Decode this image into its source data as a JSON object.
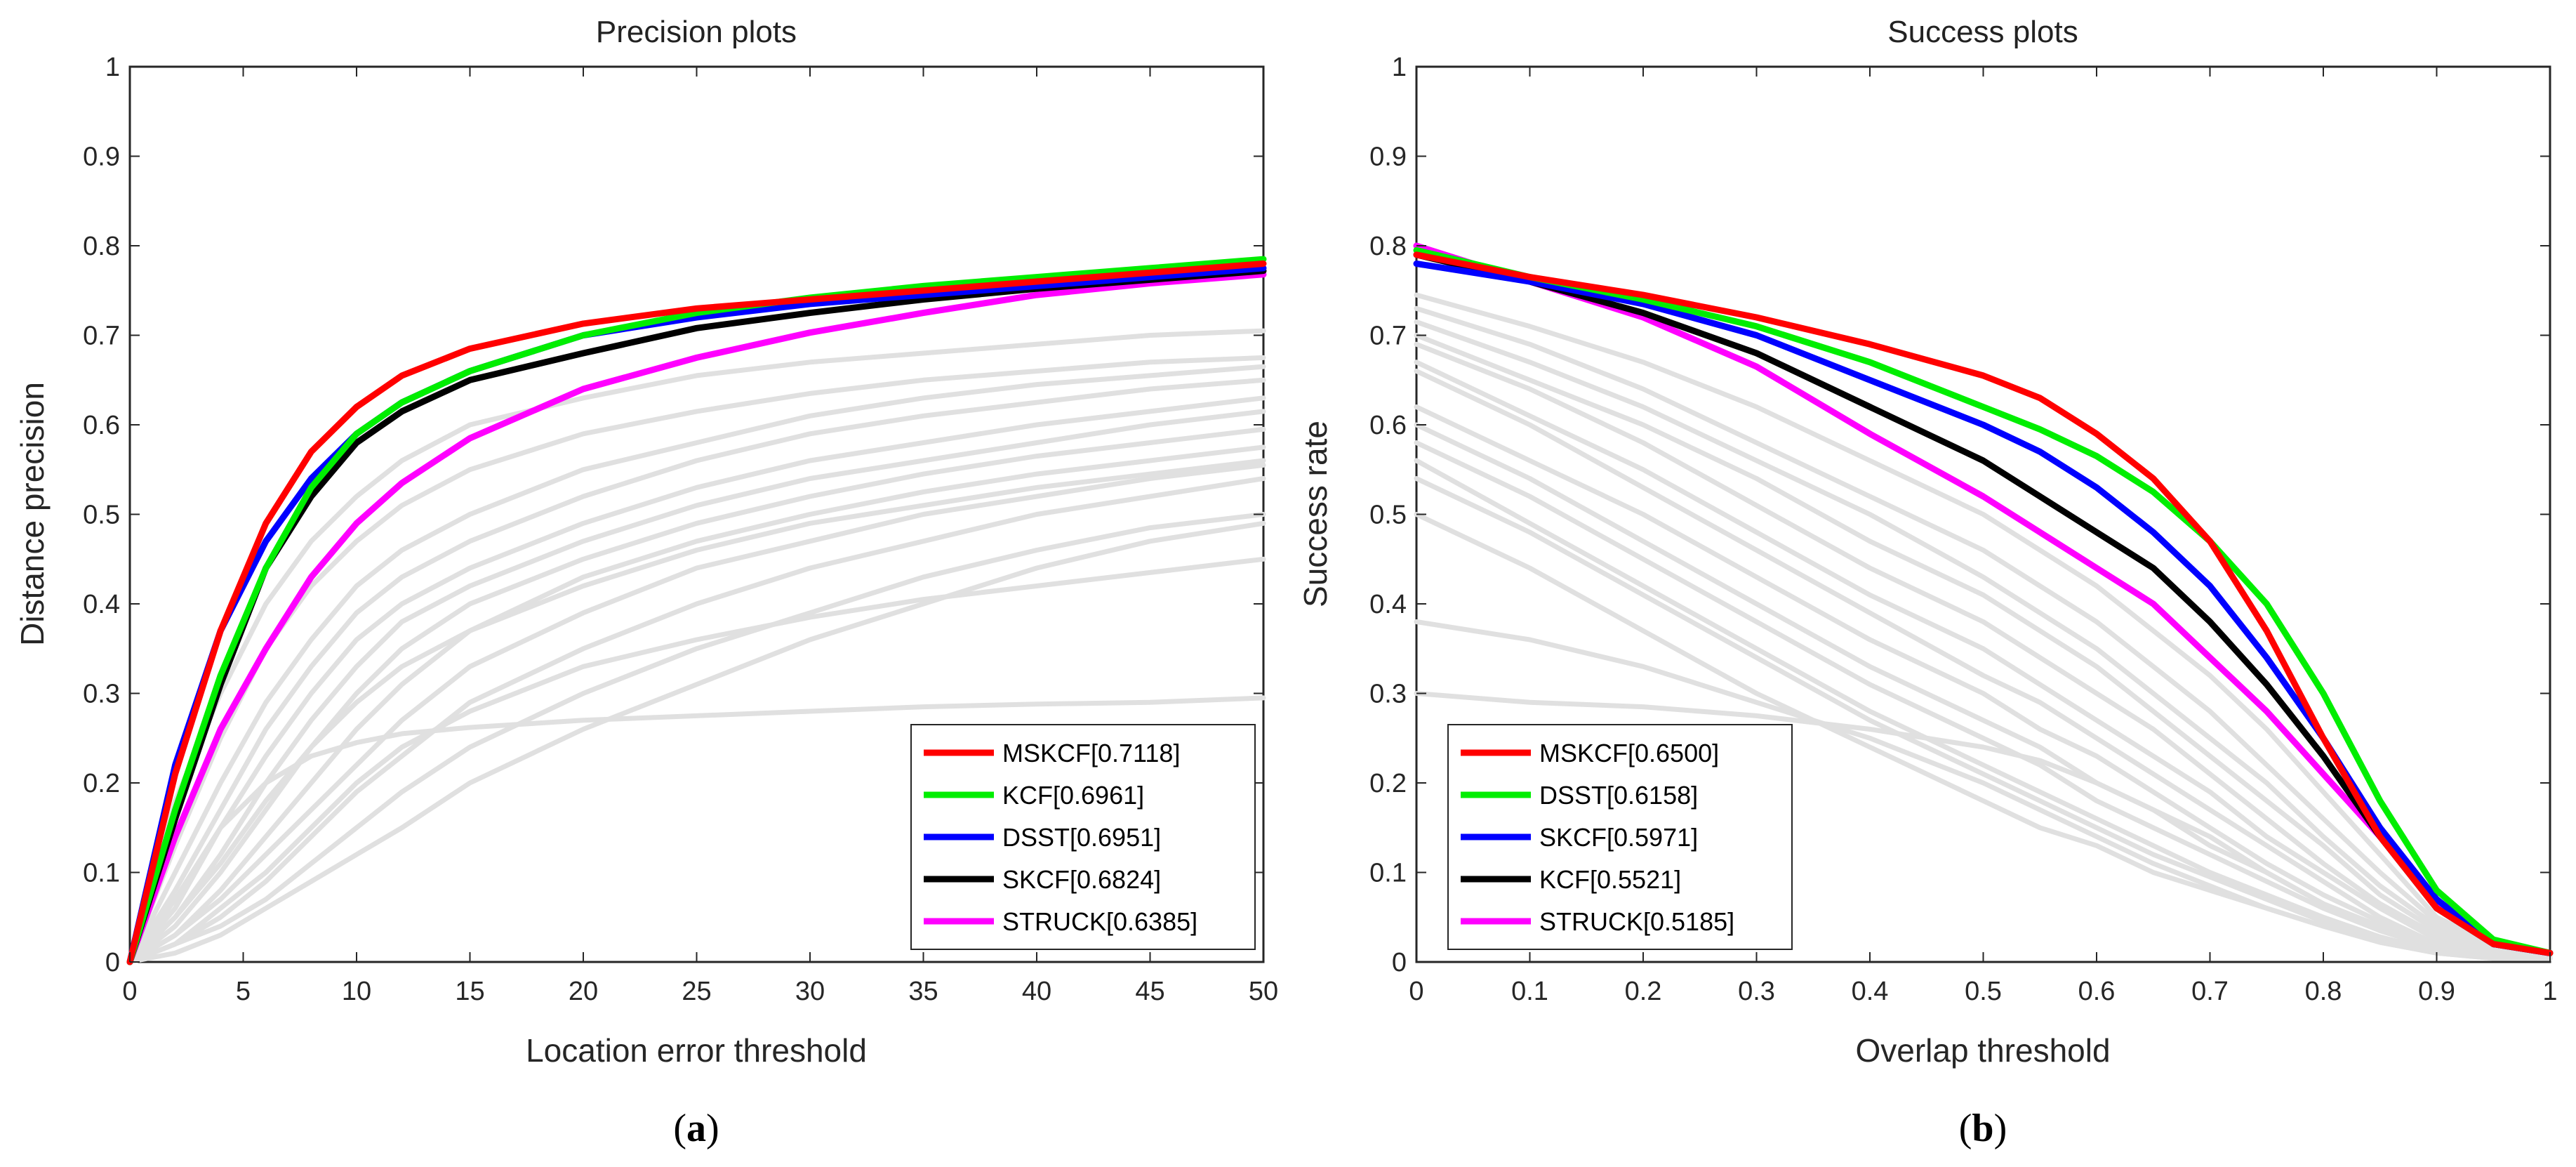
{
  "captions": {
    "a_open": "(",
    "a_letter": "a",
    "a_close": ")",
    "b_open": "(",
    "b_letter": "b",
    "b_close": ")"
  },
  "chart_data": [
    {
      "type": "line",
      "title": "Precision plots",
      "xlabel": "Location error threshold",
      "ylabel": "Distance precision",
      "xlim": [
        0,
        50
      ],
      "ylim": [
        0,
        1
      ],
      "xticks": [
        0,
        5,
        10,
        15,
        20,
        25,
        30,
        35,
        40,
        45,
        50
      ],
      "yticks": [
        0,
        0.1,
        0.2,
        0.3,
        0.4,
        0.5,
        0.6,
        0.7,
        0.8,
        0.9,
        1
      ],
      "xtick_labels": [
        "0",
        "5",
        "10",
        "15",
        "20",
        "25",
        "30",
        "35",
        "40",
        "45",
        "50"
      ],
      "ytick_labels": [
        "0",
        "0.1",
        "0.2",
        "0.3",
        "0.4",
        "0.5",
        "0.6",
        "0.7",
        "0.8",
        "0.9",
        "1"
      ],
      "grid": false,
      "legend_position": "bottom-right",
      "x": [
        0,
        2,
        4,
        6,
        8,
        10,
        12,
        15,
        20,
        25,
        30,
        35,
        40,
        45,
        50
      ],
      "series": [
        {
          "name": "MSKCF[0.7118]",
          "color": "#ff0000",
          "values": [
            0.0,
            0.21,
            0.37,
            0.49,
            0.57,
            0.62,
            0.655,
            0.685,
            0.713,
            0.73,
            0.74,
            0.75,
            0.76,
            0.77,
            0.78
          ]
        },
        {
          "name": "KCF[0.6961]",
          "color": "#00ee00",
          "values": [
            0.0,
            0.17,
            0.32,
            0.44,
            0.53,
            0.59,
            0.625,
            0.66,
            0.7,
            0.725,
            0.742,
            0.755,
            0.765,
            0.775,
            0.785
          ]
        },
        {
          "name": "DSST[0.6951]",
          "color": "#0000ff",
          "values": [
            0.0,
            0.22,
            0.37,
            0.47,
            0.54,
            0.59,
            0.625,
            0.66,
            0.7,
            0.72,
            0.735,
            0.745,
            0.755,
            0.765,
            0.775
          ]
        },
        {
          "name": "SKCF[0.6824]",
          "color": "#000000",
          "values": [
            0.0,
            0.16,
            0.31,
            0.44,
            0.52,
            0.58,
            0.615,
            0.65,
            0.68,
            0.708,
            0.725,
            0.74,
            0.752,
            0.762,
            0.772
          ]
        },
        {
          "name": "STRUCK[0.6385]",
          "color": "#ff00ff",
          "values": [
            0.0,
            0.14,
            0.26,
            0.35,
            0.43,
            0.49,
            0.535,
            0.585,
            0.64,
            0.675,
            0.703,
            0.725,
            0.745,
            0.758,
            0.768
          ]
        }
      ],
      "background_series_color": "#e0e0e0",
      "background_series": [
        [
          0.0,
          0.18,
          0.3,
          0.4,
          0.47,
          0.52,
          0.56,
          0.6,
          0.63,
          0.655,
          0.67,
          0.68,
          0.69,
          0.7,
          0.705
        ],
        [
          0.0,
          0.13,
          0.25,
          0.35,
          0.42,
          0.47,
          0.51,
          0.55,
          0.59,
          0.615,
          0.635,
          0.65,
          0.66,
          0.67,
          0.675
        ],
        [
          0.0,
          0.1,
          0.2,
          0.29,
          0.36,
          0.42,
          0.46,
          0.5,
          0.55,
          0.58,
          0.61,
          0.63,
          0.645,
          0.655,
          0.665
        ],
        [
          0.0,
          0.08,
          0.17,
          0.26,
          0.33,
          0.39,
          0.43,
          0.47,
          0.52,
          0.56,
          0.59,
          0.61,
          0.625,
          0.64,
          0.65
        ],
        [
          0.0,
          0.07,
          0.15,
          0.23,
          0.3,
          0.36,
          0.4,
          0.44,
          0.49,
          0.53,
          0.56,
          0.58,
          0.6,
          0.615,
          0.63
        ],
        [
          0.0,
          0.05,
          0.12,
          0.2,
          0.27,
          0.33,
          0.38,
          0.42,
          0.47,
          0.51,
          0.54,
          0.56,
          0.58,
          0.6,
          0.615
        ],
        [
          0.0,
          0.04,
          0.1,
          0.17,
          0.24,
          0.3,
          0.35,
          0.4,
          0.45,
          0.49,
          0.52,
          0.545,
          0.565,
          0.58,
          0.595
        ],
        [
          0.0,
          0.03,
          0.08,
          0.14,
          0.2,
          0.26,
          0.31,
          0.37,
          0.43,
          0.47,
          0.5,
          0.525,
          0.545,
          0.56,
          0.575
        ],
        [
          0.0,
          0.03,
          0.07,
          0.12,
          0.17,
          0.22,
          0.27,
          0.33,
          0.39,
          0.44,
          0.47,
          0.5,
          0.52,
          0.54,
          0.555
        ],
        [
          0.0,
          0.02,
          0.05,
          0.09,
          0.14,
          0.19,
          0.23,
          0.29,
          0.35,
          0.4,
          0.44,
          0.47,
          0.5,
          0.52,
          0.54
        ],
        [
          0.0,
          0.02,
          0.04,
          0.07,
          0.11,
          0.15,
          0.19,
          0.24,
          0.3,
          0.35,
          0.39,
          0.43,
          0.46,
          0.485,
          0.5
        ],
        [
          0.0,
          0.01,
          0.03,
          0.06,
          0.09,
          0.12,
          0.15,
          0.2,
          0.26,
          0.31,
          0.36,
          0.4,
          0.44,
          0.47,
          0.49
        ],
        [
          0.0,
          0.06,
          0.15,
          0.2,
          0.23,
          0.245,
          0.255,
          0.262,
          0.27,
          0.275,
          0.28,
          0.285,
          0.288,
          0.29,
          0.295
        ],
        [
          0.0,
          0.02,
          0.06,
          0.1,
          0.15,
          0.2,
          0.24,
          0.28,
          0.33,
          0.36,
          0.385,
          0.405,
          0.42,
          0.435,
          0.45
        ],
        [
          0.0,
          0.05,
          0.11,
          0.18,
          0.24,
          0.29,
          0.33,
          0.37,
          0.42,
          0.46,
          0.49,
          0.51,
          0.53,
          0.545,
          0.56
        ]
      ]
    },
    {
      "type": "line",
      "title": "Success plots",
      "xlabel": "Overlap threshold",
      "ylabel": "Success rate",
      "xlim": [
        0,
        1
      ],
      "ylim": [
        0,
        1
      ],
      "xticks": [
        0,
        0.1,
        0.2,
        0.3,
        0.4,
        0.5,
        0.6,
        0.7,
        0.8,
        0.9,
        1
      ],
      "yticks": [
        0,
        0.1,
        0.2,
        0.3,
        0.4,
        0.5,
        0.6,
        0.7,
        0.8,
        0.9,
        1
      ],
      "xtick_labels": [
        "0",
        "0.1",
        "0.2",
        "0.3",
        "0.4",
        "0.5",
        "0.6",
        "0.7",
        "0.8",
        "0.9",
        "1"
      ],
      "ytick_labels": [
        "0",
        "0.1",
        "0.2",
        "0.3",
        "0.4",
        "0.5",
        "0.6",
        "0.7",
        "0.8",
        "0.9",
        "1"
      ],
      "grid": false,
      "legend_position": "bottom-left",
      "x": [
        0,
        0.1,
        0.2,
        0.3,
        0.4,
        0.5,
        0.55,
        0.6,
        0.65,
        0.7,
        0.75,
        0.8,
        0.85,
        0.9,
        0.95,
        1.0
      ],
      "series": [
        {
          "name": "MSKCF[0.6500]",
          "color": "#ff0000",
          "values": [
            0.79,
            0.765,
            0.745,
            0.72,
            0.69,
            0.655,
            0.63,
            0.59,
            0.54,
            0.47,
            0.37,
            0.25,
            0.14,
            0.06,
            0.02,
            0.01
          ]
        },
        {
          "name": "DSST[0.6158]",
          "color": "#00ee00",
          "values": [
            0.795,
            0.765,
            0.74,
            0.71,
            0.67,
            0.62,
            0.595,
            0.565,
            0.525,
            0.47,
            0.4,
            0.3,
            0.18,
            0.08,
            0.025,
            0.01
          ]
        },
        {
          "name": "SKCF[0.5971]",
          "color": "#0000ff",
          "values": [
            0.78,
            0.76,
            0.735,
            0.7,
            0.65,
            0.6,
            0.57,
            0.53,
            0.48,
            0.42,
            0.34,
            0.25,
            0.15,
            0.07,
            0.02,
            0.01
          ]
        },
        {
          "name": "KCF[0.5521]",
          "color": "#000000",
          "values": [
            0.79,
            0.76,
            0.725,
            0.68,
            0.62,
            0.56,
            0.52,
            0.48,
            0.44,
            0.38,
            0.31,
            0.23,
            0.14,
            0.06,
            0.02,
            0.01
          ]
        },
        {
          "name": "STRUCK[0.5185]",
          "color": "#ff00ff",
          "values": [
            0.8,
            0.76,
            0.72,
            0.665,
            0.59,
            0.52,
            0.48,
            0.44,
            0.4,
            0.34,
            0.28,
            0.21,
            0.14,
            0.065,
            0.02,
            0.01
          ]
        }
      ],
      "background_series_color": "#e0e0e0",
      "background_series": [
        [
          0.745,
          0.71,
          0.67,
          0.62,
          0.56,
          0.5,
          0.46,
          0.42,
          0.37,
          0.32,
          0.26,
          0.19,
          0.12,
          0.05,
          0.02,
          0.01
        ],
        [
          0.73,
          0.69,
          0.64,
          0.58,
          0.52,
          0.46,
          0.42,
          0.38,
          0.33,
          0.28,
          0.22,
          0.16,
          0.1,
          0.045,
          0.015,
          0.01
        ],
        [
          0.715,
          0.67,
          0.62,
          0.56,
          0.5,
          0.43,
          0.39,
          0.35,
          0.3,
          0.25,
          0.2,
          0.14,
          0.085,
          0.04,
          0.015,
          0.01
        ],
        [
          0.7,
          0.65,
          0.6,
          0.54,
          0.47,
          0.41,
          0.37,
          0.33,
          0.28,
          0.23,
          0.18,
          0.13,
          0.075,
          0.035,
          0.012,
          0.005
        ],
        [
          0.69,
          0.64,
          0.58,
          0.51,
          0.44,
          0.38,
          0.34,
          0.3,
          0.26,
          0.21,
          0.16,
          0.11,
          0.065,
          0.03,
          0.01,
          0.005
        ],
        [
          0.67,
          0.61,
          0.55,
          0.48,
          0.41,
          0.35,
          0.31,
          0.27,
          0.23,
          0.19,
          0.14,
          0.1,
          0.06,
          0.025,
          0.01,
          0.005
        ],
        [
          0.66,
          0.6,
          0.53,
          0.46,
          0.39,
          0.32,
          0.29,
          0.25,
          0.21,
          0.17,
          0.13,
          0.09,
          0.05,
          0.02,
          0.008,
          0.005
        ],
        [
          0.62,
          0.56,
          0.5,
          0.43,
          0.36,
          0.3,
          0.26,
          0.23,
          0.19,
          0.15,
          0.11,
          0.075,
          0.045,
          0.02,
          0.008,
          0.005
        ],
        [
          0.6,
          0.54,
          0.47,
          0.4,
          0.33,
          0.27,
          0.24,
          0.2,
          0.17,
          0.13,
          0.1,
          0.065,
          0.04,
          0.018,
          0.007,
          0.005
        ],
        [
          0.58,
          0.52,
          0.45,
          0.38,
          0.31,
          0.25,
          0.22,
          0.18,
          0.15,
          0.12,
          0.09,
          0.06,
          0.035,
          0.015,
          0.006,
          0.005
        ],
        [
          0.54,
          0.48,
          0.41,
          0.34,
          0.27,
          0.21,
          0.18,
          0.15,
          0.12,
          0.095,
          0.07,
          0.045,
          0.025,
          0.012,
          0.005,
          0.005
        ],
        [
          0.5,
          0.44,
          0.37,
          0.3,
          0.24,
          0.18,
          0.15,
          0.13,
          0.1,
          0.08,
          0.06,
          0.04,
          0.022,
          0.01,
          0.004,
          0.004
        ],
        [
          0.38,
          0.36,
          0.33,
          0.29,
          0.25,
          0.2,
          0.17,
          0.14,
          0.11,
          0.085,
          0.06,
          0.04,
          0.022,
          0.01,
          0.004,
          0.004
        ],
        [
          0.3,
          0.29,
          0.285,
          0.275,
          0.26,
          0.24,
          0.225,
          0.2,
          0.17,
          0.14,
          0.1,
          0.065,
          0.035,
          0.015,
          0.005,
          0.004
        ],
        [
          0.56,
          0.49,
          0.42,
          0.35,
          0.28,
          0.22,
          0.19,
          0.16,
          0.13,
          0.1,
          0.075,
          0.05,
          0.028,
          0.012,
          0.005,
          0.004
        ]
      ]
    }
  ]
}
